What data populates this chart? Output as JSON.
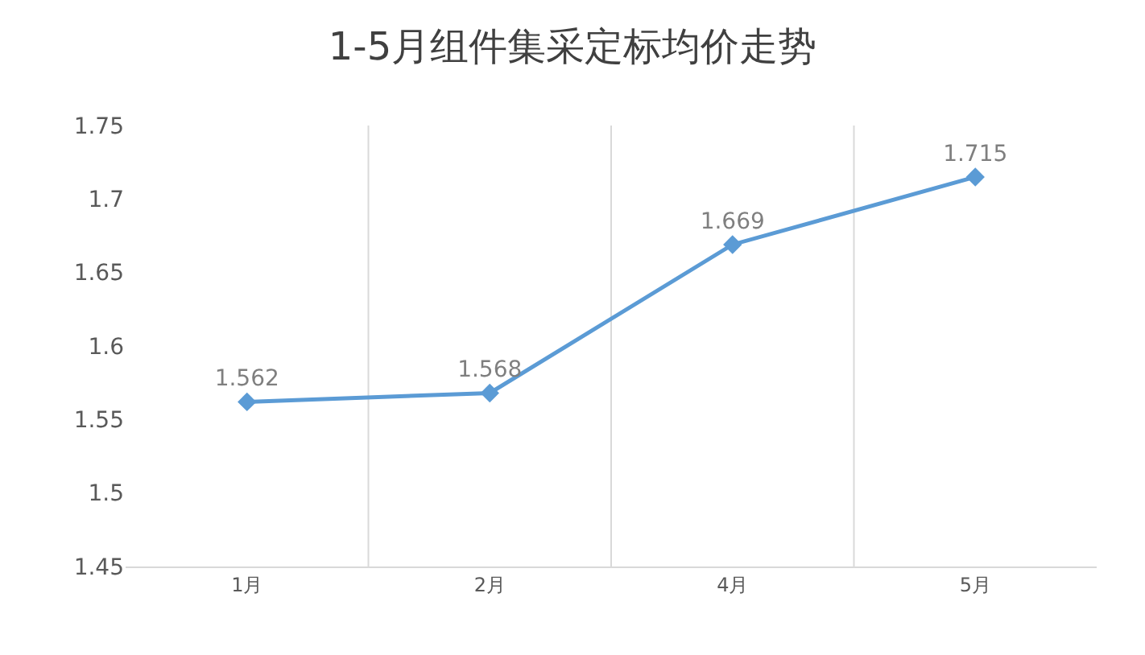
{
  "chart_data": {
    "type": "line",
    "title": "1-5月组件集采定标均价走势",
    "categories": [
      "1月",
      "2月",
      "4月",
      "5月"
    ],
    "series": [
      {
        "color": "#5b9bd5",
        "values": [
          1.562,
          1.568,
          1.669,
          1.715
        ]
      }
    ],
    "ylim": [
      1.45,
      1.75
    ],
    "yticks": [
      1.45,
      1.5,
      1.55,
      1.6,
      1.65,
      1.7,
      1.75
    ],
    "grid": "x",
    "marker": "diamond",
    "line_style": "solid",
    "data_labels": true
  }
}
